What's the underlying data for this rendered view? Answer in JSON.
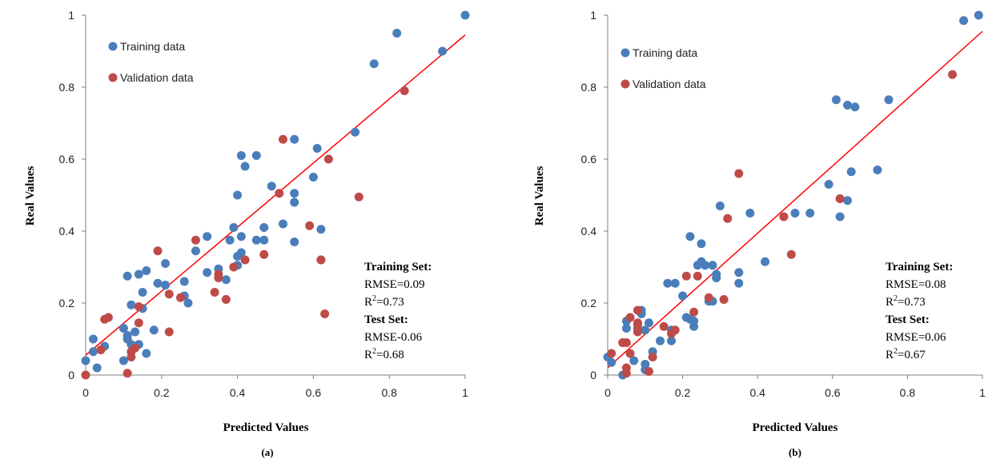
{
  "colors": {
    "training": "#4A7EBB",
    "validation": "#BE4B48",
    "fit": "#FF0000",
    "axis": "#7f7f7f"
  },
  "chart_data": [
    {
      "type": "scatter",
      "panel_label": "(a)",
      "xlabel": "Predicted Values",
      "ylabel": "Real Values",
      "xlim": [
        0,
        1
      ],
      "ylim": [
        0,
        1
      ],
      "x_ticks": [
        "0",
        "0.2",
        "0.4",
        "0.6",
        "0.8",
        "1"
      ],
      "y_ticks": [
        "0",
        "0.2",
        "0.4",
        "0.6",
        "0.8",
        "1"
      ],
      "legend": {
        "placement": "top-left",
        "entries": [
          "Training data",
          "Validation data"
        ]
      },
      "fit_line": {
        "x": [
          0,
          1
        ],
        "y": [
          0.055,
          0.945
        ]
      },
      "series": [
        {
          "name": "Training data",
          "points": [
            [
              0,
              0.04
            ],
            [
              0.02,
              0.065
            ],
            [
              0.02,
              0.1
            ],
            [
              0.03,
              0.02
            ],
            [
              0.05,
              0.08
            ],
            [
              0.1,
              0.04
            ],
            [
              0.1,
              0.13
            ],
            [
              0.11,
              0.11
            ],
            [
              0.11,
              0.275
            ],
            [
              0.11,
              0.1
            ],
            [
              0.12,
              0.195
            ],
            [
              0.12,
              0.085
            ],
            [
              0.13,
              0.08
            ],
            [
              0.13,
              0.12
            ],
            [
              0.14,
              0.085
            ],
            [
              0.14,
              0.28
            ],
            [
              0.15,
              0.23
            ],
            [
              0.15,
              0.185
            ],
            [
              0.16,
              0.29
            ],
            [
              0.16,
              0.06
            ],
            [
              0.18,
              0.125
            ],
            [
              0.19,
              0.255
            ],
            [
              0.21,
              0.31
            ],
            [
              0.21,
              0.25
            ],
            [
              0.26,
              0.26
            ],
            [
              0.26,
              0.22
            ],
            [
              0.27,
              0.2
            ],
            [
              0.29,
              0.345
            ],
            [
              0.32,
              0.385
            ],
            [
              0.32,
              0.285
            ],
            [
              0.35,
              0.295
            ],
            [
              0.37,
              0.265
            ],
            [
              0.38,
              0.375
            ],
            [
              0.39,
              0.41
            ],
            [
              0.4,
              0.5
            ],
            [
              0.4,
              0.33
            ],
            [
              0.4,
              0.305
            ],
            [
              0.41,
              0.61
            ],
            [
              0.41,
              0.385
            ],
            [
              0.41,
              0.34
            ],
            [
              0.42,
              0.58
            ],
            [
              0.45,
              0.61
            ],
            [
              0.45,
              0.375
            ],
            [
              0.47,
              0.41
            ],
            [
              0.47,
              0.375
            ],
            [
              0.49,
              0.525
            ],
            [
              0.52,
              0.42
            ],
            [
              0.55,
              0.655
            ],
            [
              0.55,
              0.505
            ],
            [
              0.55,
              0.48
            ],
            [
              0.55,
              0.37
            ],
            [
              0.6,
              0.55
            ],
            [
              0.61,
              0.63
            ],
            [
              0.62,
              0.405
            ],
            [
              0.62,
              0.32
            ],
            [
              0.71,
              0.675
            ],
            [
              0.76,
              0.865
            ],
            [
              0.82,
              0.95
            ],
            [
              0.94,
              0.9
            ],
            [
              1,
              1
            ]
          ]
        },
        {
          "name": "Validation data",
          "points": [
            [
              0,
              0
            ],
            [
              0.04,
              0.07
            ],
            [
              0.05,
              0.155
            ],
            [
              0.06,
              0.16
            ],
            [
              0.11,
              0.005
            ],
            [
              0.12,
              0.05
            ],
            [
              0.12,
              0.065
            ],
            [
              0.13,
              0.075
            ],
            [
              0.14,
              0.19
            ],
            [
              0.14,
              0.145
            ],
            [
              0.19,
              0.345
            ],
            [
              0.22,
              0.12
            ],
            [
              0.22,
              0.225
            ],
            [
              0.25,
              0.215
            ],
            [
              0.29,
              0.375
            ],
            [
              0.34,
              0.23
            ],
            [
              0.35,
              0.28
            ],
            [
              0.35,
              0.27
            ],
            [
              0.37,
              0.21
            ],
            [
              0.39,
              0.3
            ],
            [
              0.42,
              0.32
            ],
            [
              0.47,
              0.335
            ],
            [
              0.51,
              0.505
            ],
            [
              0.52,
              0.655
            ],
            [
              0.59,
              0.415
            ],
            [
              0.62,
              0.32
            ],
            [
              0.63,
              0.17
            ],
            [
              0.64,
              0.6
            ],
            [
              0.72,
              0.495
            ],
            [
              0.84,
              0.79
            ]
          ]
        }
      ],
      "stats": {
        "training_title": "Training Set:",
        "training_rmse": "RMSE=0.09",
        "training_r2_prefix": "R",
        "training_r2_sup": "2",
        "training_r2_value": "=0.73",
        "test_title": "Test Set:",
        "test_rmse": "RMSE-0.06",
        "test_r2_prefix": "R",
        "test_r2_sup": "2",
        "test_r2_value": "=0.68"
      }
    },
    {
      "type": "scatter",
      "panel_label": "(b)",
      "xlabel": "Predicted Values",
      "ylabel": "Real Values",
      "xlim": [
        0,
        1
      ],
      "ylim": [
        0,
        1
      ],
      "x_ticks": [
        "0",
        "0.2",
        "0.4",
        "0.6",
        "0.8",
        "1"
      ],
      "y_ticks": [
        "0",
        "0.2",
        "0.4",
        "0.6",
        "0.8",
        "1"
      ],
      "legend": {
        "placement": "top-left",
        "entries": [
          "Training data",
          "Validation data"
        ]
      },
      "fit_line": {
        "x": [
          0,
          1
        ],
        "y": [
          0.02,
          0.955
        ]
      },
      "series": [
        {
          "name": "Training data",
          "points": [
            [
              0,
              0.05
            ],
            [
              0.01,
              0.035
            ],
            [
              0.04,
              0.0
            ],
            [
              0.05,
              0.15
            ],
            [
              0.05,
              0.13
            ],
            [
              0.07,
              0.04
            ],
            [
              0.08,
              0.14
            ],
            [
              0.09,
              0.18
            ],
            [
              0.09,
              0.17
            ],
            [
              0.1,
              0.03
            ],
            [
              0.1,
              0.015
            ],
            [
              0.1,
              0.125
            ],
            [
              0.11,
              0.145
            ],
            [
              0.12,
              0.065
            ],
            [
              0.14,
              0.095
            ],
            [
              0.16,
              0.255
            ],
            [
              0.17,
              0.095
            ],
            [
              0.17,
              0.125
            ],
            [
              0.18,
              0.255
            ],
            [
              0.2,
              0.22
            ],
            [
              0.21,
              0.16
            ],
            [
              0.22,
              0.385
            ],
            [
              0.22,
              0.155
            ],
            [
              0.23,
              0.15
            ],
            [
              0.23,
              0.135
            ],
            [
              0.24,
              0.305
            ],
            [
              0.25,
              0.315
            ],
            [
              0.25,
              0.365
            ],
            [
              0.26,
              0.305
            ],
            [
              0.27,
              0.205
            ],
            [
              0.28,
              0.305
            ],
            [
              0.28,
              0.205
            ],
            [
              0.29,
              0.27
            ],
            [
              0.29,
              0.28
            ],
            [
              0.3,
              0.47
            ],
            [
              0.35,
              0.285
            ],
            [
              0.35,
              0.255
            ],
            [
              0.38,
              0.45
            ],
            [
              0.42,
              0.315
            ],
            [
              0.5,
              0.45
            ],
            [
              0.54,
              0.45
            ],
            [
              0.59,
              0.53
            ],
            [
              0.61,
              0.765
            ],
            [
              0.62,
              0.44
            ],
            [
              0.64,
              0.485
            ],
            [
              0.64,
              0.75
            ],
            [
              0.65,
              0.565
            ],
            [
              0.66,
              0.745
            ],
            [
              0.72,
              0.57
            ],
            [
              0.75,
              0.765
            ],
            [
              0.95,
              0.985
            ],
            [
              0.99,
              1
            ]
          ]
        },
        {
          "name": "Validation data",
          "points": [
            [
              0.01,
              0.06
            ],
            [
              0.04,
              0.09
            ],
            [
              0.05,
              0.09
            ],
            [
              0.05,
              0.005
            ],
            [
              0.05,
              0.02
            ],
            [
              0.06,
              0.16
            ],
            [
              0.06,
              0.06
            ],
            [
              0.08,
              0.18
            ],
            [
              0.08,
              0.145
            ],
            [
              0.08,
              0.12
            ],
            [
              0.08,
              0.13
            ],
            [
              0.11,
              0.01
            ],
            [
              0.12,
              0.05
            ],
            [
              0.15,
              0.135
            ],
            [
              0.17,
              0.115
            ],
            [
              0.18,
              0.125
            ],
            [
              0.21,
              0.275
            ],
            [
              0.23,
              0.175
            ],
            [
              0.24,
              0.275
            ],
            [
              0.27,
              0.215
            ],
            [
              0.31,
              0.21
            ],
            [
              0.32,
              0.435
            ],
            [
              0.35,
              0.56
            ],
            [
              0.47,
              0.44
            ],
            [
              0.49,
              0.335
            ],
            [
              0.62,
              0.49
            ],
            [
              0.92,
              0.835
            ]
          ]
        }
      ],
      "stats": {
        "training_title": "Training Set:",
        "training_rmse": "RMSE=0.08",
        "training_r2_prefix": "R",
        "training_r2_sup": "2",
        "training_r2_value": "=0.73",
        "test_title": "Test Set:",
        "test_rmse": "RMSE=0.06",
        "test_r2_prefix": "R",
        "test_r2_sup": "2",
        "test_r2_value": "=0.67"
      }
    }
  ]
}
